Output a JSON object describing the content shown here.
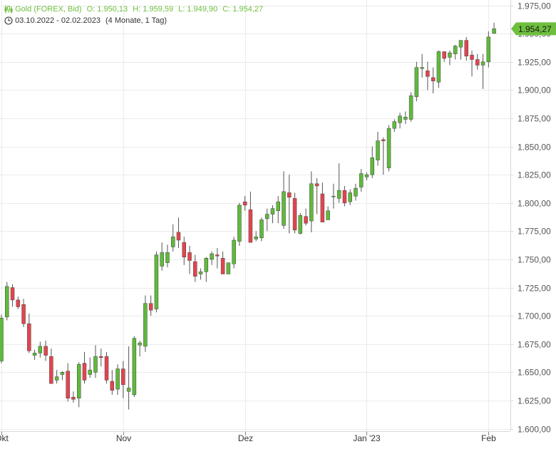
{
  "header": {
    "instrument": "Gold (FOREX, Bid)",
    "open": "O: 1.950,13",
    "high": "H: 1.959,59",
    "low": "L: 1.949,90",
    "close": "C: 1.954,27",
    "range": "03.10.2022 - 02.02.2023",
    "period": "(4 Monate, 1 Tag)",
    "instrument_icon": "candlestick-icon",
    "range_icon": "clock-icon"
  },
  "colors": {
    "up": "#5fba3a",
    "down": "#e4444f",
    "wick": "#555555",
    "grid": "#ebebeb",
    "axis": "#d8d8d8",
    "header_text": "#6dbf3d",
    "last_price_bg": "#6dbf3d"
  },
  "chart_data": {
    "type": "candlestick",
    "y_axis_position": "right",
    "ylim": [
      1600,
      1975
    ],
    "yticks": [
      1600,
      1625,
      1650,
      1675,
      1700,
      1725,
      1750,
      1775,
      1800,
      1825,
      1850,
      1875,
      1900,
      1925,
      1950,
      1975
    ],
    "ytick_labels": [
      "1.600,00",
      "1.625,00",
      "1.650,00",
      "1.675,00",
      "1.700,00",
      "1.725,00",
      "1.750,00",
      "1.775,00",
      "1.800,00",
      "1.825,00",
      "1.850,00",
      "1.875,00",
      "1.900,00",
      "1.925,00",
      "1.950,00",
      "1.975,00"
    ],
    "x_labels": [
      {
        "label": "Okt",
        "candle": 0
      },
      {
        "label": "Nov",
        "candle": 22
      },
      {
        "label": "Dez",
        "candle": 44
      },
      {
        "label": "Jan '23",
        "candle": 66
      },
      {
        "label": "Feb",
        "candle": 88
      }
    ],
    "last_price": 1954.27,
    "last_price_label": "1.954,27",
    "grid": true,
    "candles": [
      [
        1660,
        1701,
        1658,
        1698
      ],
      [
        1699,
        1730,
        1696,
        1726
      ],
      [
        1725,
        1728,
        1708,
        1714
      ],
      [
        1714,
        1717,
        1706,
        1708
      ],
      [
        1710,
        1715,
        1690,
        1693
      ],
      [
        1693,
        1702,
        1667,
        1669
      ],
      [
        1665,
        1670,
        1661,
        1667
      ],
      [
        1667,
        1677,
        1663,
        1673
      ],
      [
        1673,
        1678,
        1660,
        1665
      ],
      [
        1664,
        1671,
        1643,
        1640
      ],
      [
        1643,
        1652,
        1640,
        1646
      ],
      [
        1648,
        1651,
        1643,
        1650
      ],
      [
        1651,
        1658,
        1624,
        1627
      ],
      [
        1628,
        1633,
        1623,
        1626
      ],
      [
        1627,
        1659,
        1619,
        1657
      ],
      [
        1658,
        1668,
        1640,
        1643
      ],
      [
        1648,
        1663,
        1645,
        1652
      ],
      [
        1650,
        1674,
        1645,
        1664
      ],
      [
        1664,
        1671,
        1655,
        1663
      ],
      [
        1664,
        1668,
        1640,
        1643
      ],
      [
        1642,
        1652,
        1630,
        1634
      ],
      [
        1635,
        1657,
        1630,
        1653
      ],
      [
        1653,
        1660,
        1627,
        1639
      ],
      [
        1633,
        1673,
        1617,
        1636
      ],
      [
        1630,
        1682,
        1628,
        1680
      ],
      [
        1674,
        1678,
        1664,
        1676
      ],
      [
        1673,
        1718,
        1668,
        1711
      ],
      [
        1711,
        1718,
        1700,
        1705
      ],
      [
        1706,
        1757,
        1703,
        1754
      ],
      [
        1744,
        1765,
        1740,
        1756
      ],
      [
        1747,
        1763,
        1743,
        1756
      ],
      [
        1761,
        1781,
        1757,
        1770
      ],
      [
        1774,
        1787,
        1760,
        1767
      ],
      [
        1765,
        1770,
        1745,
        1752
      ],
      [
        1756,
        1762,
        1737,
        1749
      ],
      [
        1748,
        1754,
        1730,
        1735
      ],
      [
        1737,
        1742,
        1732,
        1739
      ],
      [
        1739,
        1752,
        1730,
        1751
      ],
      [
        1750,
        1757,
        1745,
        1755
      ],
      [
        1754,
        1760,
        1742,
        1753
      ],
      [
        1751,
        1757,
        1738,
        1737
      ],
      [
        1737,
        1747,
        1738,
        1747
      ],
      [
        1746,
        1770,
        1742,
        1767
      ],
      [
        1766,
        1800,
        1762,
        1798
      ],
      [
        1801,
        1806,
        1793,
        1798
      ],
      [
        1794,
        1810,
        1765,
        1765
      ],
      [
        1768,
        1775,
        1766,
        1770
      ],
      [
        1769,
        1787,
        1766,
        1785
      ],
      [
        1786,
        1795,
        1775,
        1790
      ],
      [
        1790,
        1798,
        1782,
        1795
      ],
      [
        1793,
        1806,
        1782,
        1801
      ],
      [
        1780,
        1828,
        1777,
        1810
      ],
      [
        1809,
        1825,
        1773,
        1805
      ],
      [
        1804,
        1809,
        1773,
        1776
      ],
      [
        1773,
        1791,
        1772,
        1789
      ],
      [
        1788,
        1795,
        1780,
        1782
      ],
      [
        1784,
        1828,
        1774,
        1817
      ],
      [
        1817,
        1822,
        1790,
        1815
      ],
      [
        1808,
        1818,
        1785,
        1783
      ],
      [
        1785,
        1797,
        1787,
        1793
      ],
      [
        1806,
        1817,
        1795,
        1806
      ],
      [
        1804,
        1835,
        1800,
        1811
      ],
      [
        1811,
        1815,
        1797,
        1800
      ],
      [
        1801,
        1812,
        1798,
        1809
      ],
      [
        1806,
        1817,
        1802,
        1813
      ],
      [
        1814,
        1830,
        1810,
        1826
      ],
      [
        1823,
        1827,
        1820,
        1825
      ],
      [
        1825,
        1850,
        1822,
        1840
      ],
      [
        1838,
        1863,
        1833,
        1855
      ],
      [
        1856,
        1858,
        1825,
        1855
      ],
      [
        1831,
        1869,
        1828,
        1866
      ],
      [
        1866,
        1874,
        1863,
        1872
      ],
      [
        1871,
        1880,
        1866,
        1877
      ],
      [
        1874,
        1881,
        1870,
        1876
      ],
      [
        1874,
        1898,
        1872,
        1895
      ],
      [
        1894,
        1925,
        1890,
        1920
      ],
      [
        1919,
        1932,
        1911,
        1920
      ],
      [
        1917,
        1925,
        1900,
        1912
      ],
      [
        1911,
        1920,
        1897,
        1908
      ],
      [
        1907,
        1935,
        1902,
        1934
      ],
      [
        1934,
        1934,
        1925,
        1928
      ],
      [
        1929,
        1935,
        1922,
        1933
      ],
      [
        1932,
        1940,
        1927,
        1939
      ],
      [
        1938,
        1942,
        1927,
        1944
      ],
      [
        1944,
        1947,
        1926,
        1930
      ],
      [
        1931,
        1935,
        1912,
        1927
      ],
      [
        1927,
        1932,
        1918,
        1922
      ],
      [
        1922,
        1932,
        1901,
        1925
      ],
      [
        1925,
        1952,
        1920,
        1947
      ],
      [
        1950.13,
        1959.59,
        1949.9,
        1954.27
      ]
    ]
  }
}
